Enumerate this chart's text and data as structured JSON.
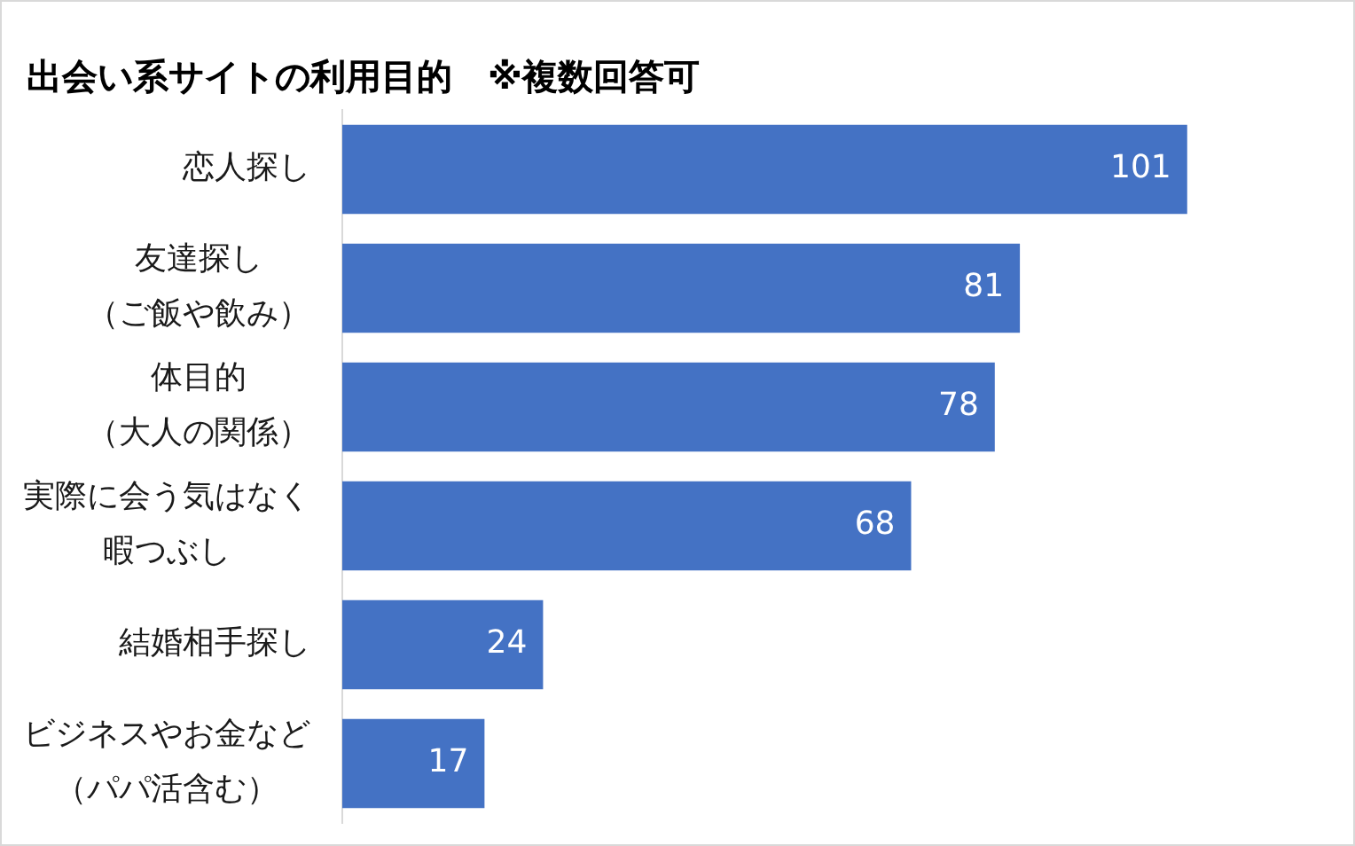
{
  "chart_data": {
    "type": "bar",
    "orientation": "horizontal",
    "title": "出会い系サイトの利用目的　※複数回答可",
    "categories": [
      "恋人探し",
      "友達探し（ご飯や飲み）",
      "体目的（大人の関係）",
      "実際に会う気はなく暇つぶし",
      "結婚相手探し",
      "ビジネスやお金など（パパ活含む）"
    ],
    "values": [
      101,
      81,
      78,
      68,
      24,
      17
    ],
    "color": "#4472c4",
    "data_labels": true,
    "tick_labels": "y"
  }
}
